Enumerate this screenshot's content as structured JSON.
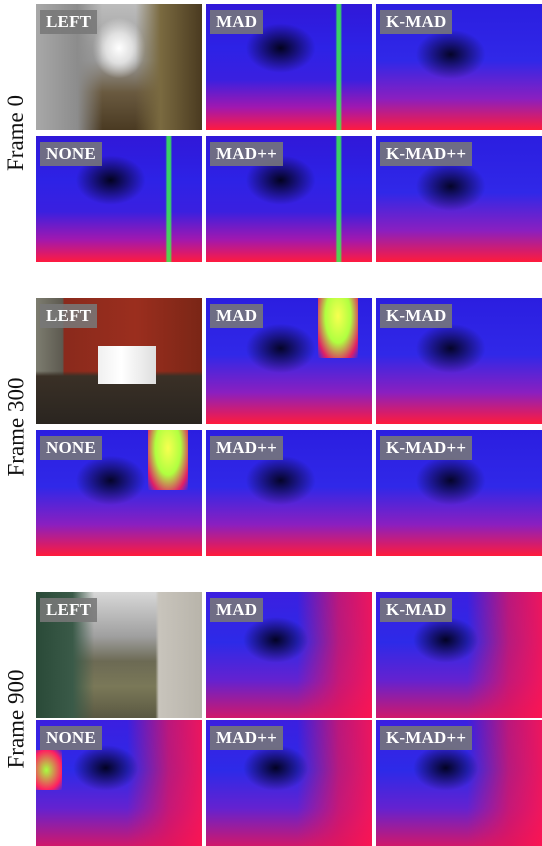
{
  "rows": [
    {
      "frame_label": "Frame 0",
      "tiles": [
        "LEFT",
        "MAD",
        "K-MAD",
        "NONE",
        "MAD++",
        "K-MAD++"
      ]
    },
    {
      "frame_label": "Frame 300",
      "tiles": [
        "LEFT",
        "MAD",
        "K-MAD",
        "NONE",
        "MAD++",
        "K-MAD++"
      ]
    },
    {
      "frame_label": "Frame 900",
      "tiles": [
        "LEFT",
        "MAD",
        "K-MAD",
        "NONE",
        "MAD++",
        "K-MAD++"
      ]
    }
  ]
}
